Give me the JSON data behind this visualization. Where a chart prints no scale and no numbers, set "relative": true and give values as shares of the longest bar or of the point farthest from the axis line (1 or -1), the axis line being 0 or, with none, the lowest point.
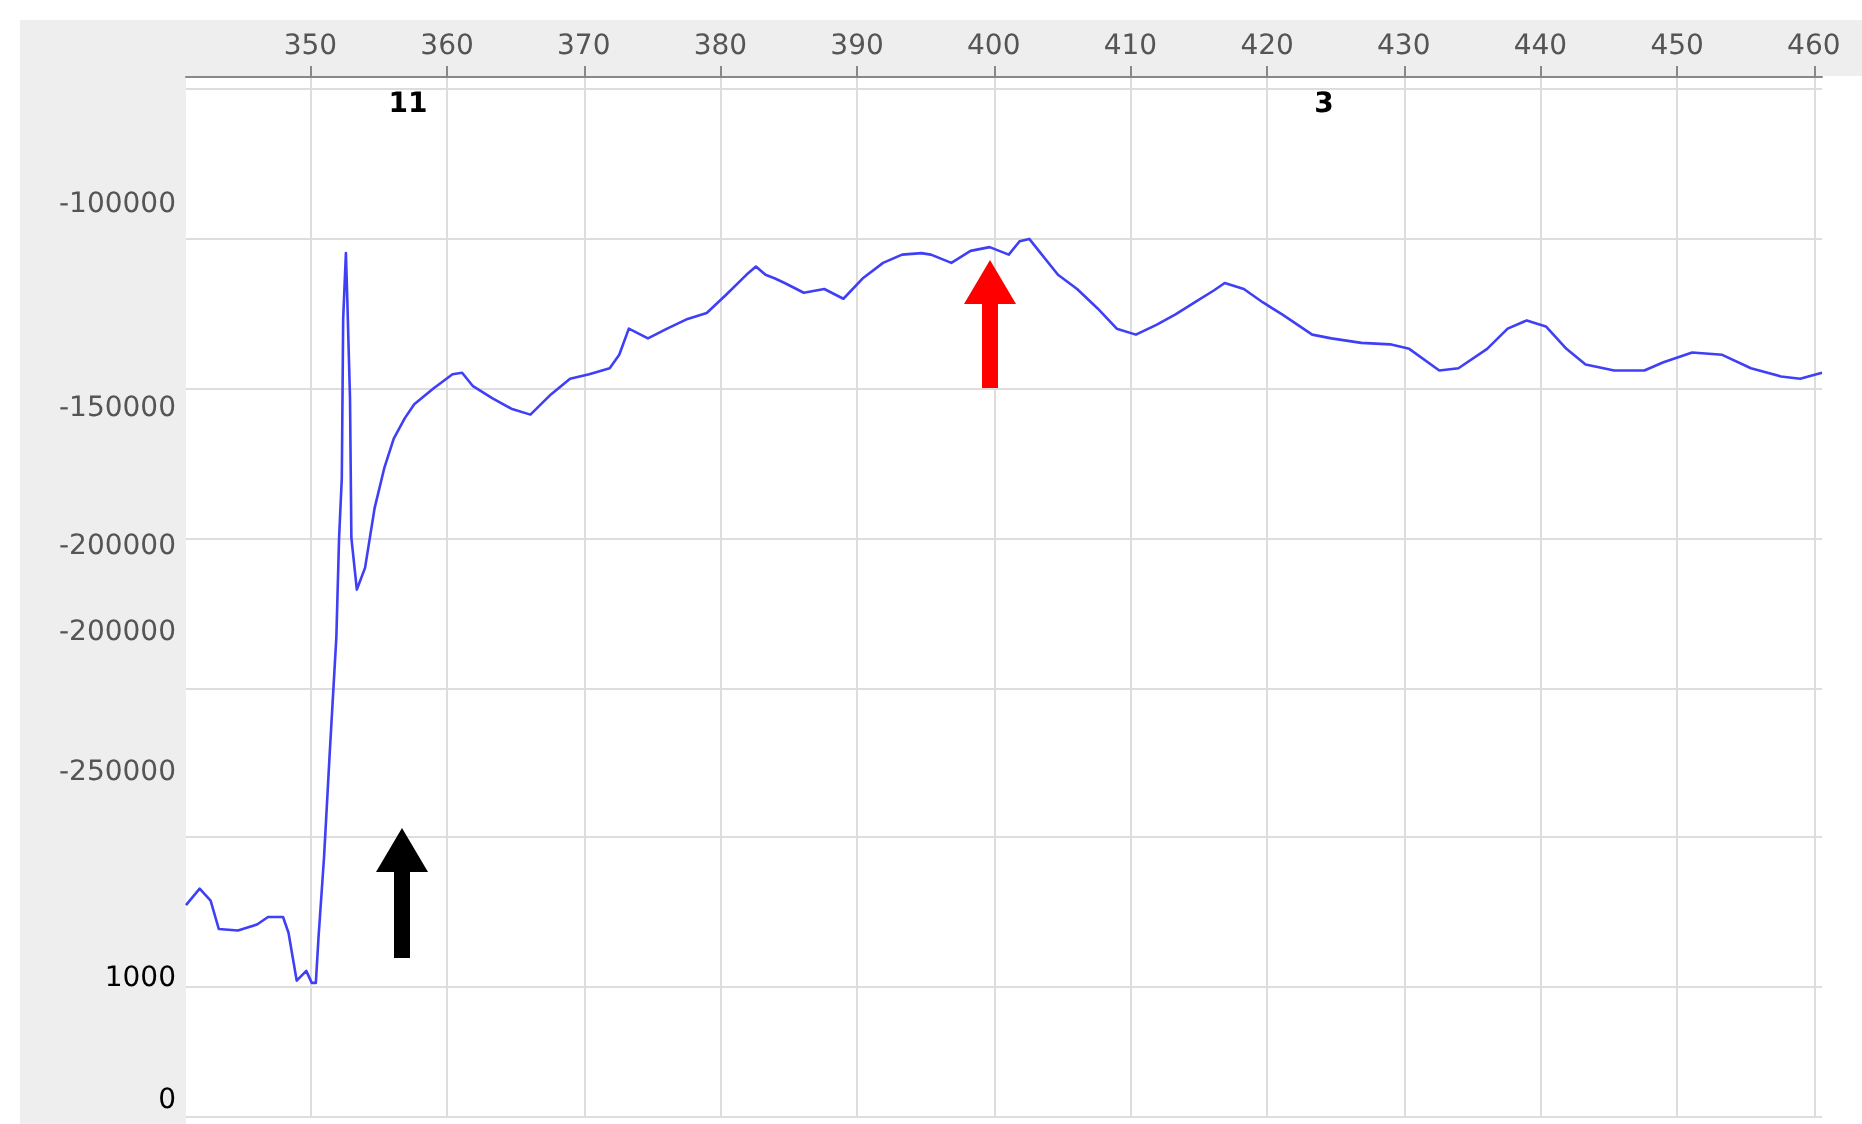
{
  "chart_data": {
    "type": "line",
    "relative": true,
    "grid": true,
    "marker": "none",
    "line_style": "solid",
    "xlim": [
      340.9,
      460.6
    ],
    "xticks": [
      350,
      360,
      370,
      380,
      390,
      400,
      410,
      420,
      430,
      440,
      450,
      460
    ],
    "annotations": [
      "11",
      "3",
      "-100000",
      "-150000",
      "-200000",
      "-200000",
      "-250000",
      "1000",
      "0"
    ],
    "series": [
      {
        "color": "#3f3ff5",
        "x": [
          340.9,
          341.9,
          342.7,
          343.3,
          344.7,
          346.1,
          346.9,
          348.0,
          348.4,
          349.0,
          349.7,
          350.1,
          350.4,
          350.6,
          351.0,
          351.4,
          351.9,
          352.1,
          352.3,
          352.4,
          352.6,
          352.7,
          352.9,
          353.0,
          353.4,
          354.0,
          354.7,
          355.4,
          356.1,
          356.9,
          357.6,
          359.0,
          360.4,
          361.1,
          361.9,
          363.3,
          364.7,
          366.1,
          367.6,
          369.0,
          370.4,
          371.9,
          372.6,
          373.3,
          374.7,
          376.1,
          377.6,
          379.0,
          380.4,
          381.9,
          382.6,
          383.3,
          384.0,
          384.7,
          386.1,
          387.6,
          389.0,
          390.4,
          391.9,
          393.3,
          394.7,
          395.4,
          396.9,
          398.3,
          399.7,
          401.1,
          401.9,
          402.6,
          403.3,
          404.7,
          406.1,
          407.6,
          409.0,
          410.4,
          411.9,
          413.3,
          414.7,
          416.1,
          416.9,
          418.3,
          419.7,
          421.1,
          423.3,
          424.7,
          426.9,
          429.0,
          430.4,
          432.6,
          434.0,
          436.1,
          437.6,
          439.0,
          440.4,
          441.9,
          443.3,
          445.4,
          447.6,
          449.0,
          451.1,
          453.3,
          455.4,
          457.6,
          459.0,
          460.6
        ],
        "values": [
          0.109,
          0.131,
          0.115,
          0.077,
          0.075,
          0.083,
          0.093,
          0.093,
          0.072,
          0.008,
          0.021,
          0.005,
          0.005,
          0.067,
          0.173,
          0.307,
          0.467,
          0.6,
          0.68,
          0.893,
          0.981,
          0.92,
          0.787,
          0.6,
          0.531,
          0.56,
          0.64,
          0.693,
          0.733,
          0.76,
          0.779,
          0.8,
          0.819,
          0.821,
          0.803,
          0.787,
          0.773,
          0.765,
          0.792,
          0.813,
          0.819,
          0.827,
          0.845,
          0.88,
          0.867,
          0.88,
          0.893,
          0.901,
          0.925,
          0.952,
          0.963,
          0.952,
          0.947,
          0.941,
          0.928,
          0.933,
          0.92,
          0.947,
          0.968,
          0.979,
          0.981,
          0.979,
          0.968,
          0.984,
          0.989,
          0.979,
          0.997,
          1,
          0.984,
          0.952,
          0.933,
          0.907,
          0.88,
          0.872,
          0.885,
          0.899,
          0.915,
          0.931,
          0.941,
          0.933,
          0.915,
          0.899,
          0.872,
          0.867,
          0.861,
          0.859,
          0.853,
          0.824,
          0.827,
          0.853,
          0.88,
          0.891,
          0.883,
          0.853,
          0.832,
          0.824,
          0.824,
          0.835,
          0.848,
          0.845,
          0.827,
          0.816,
          0.813,
          0.821
        ]
      }
    ]
  }
}
